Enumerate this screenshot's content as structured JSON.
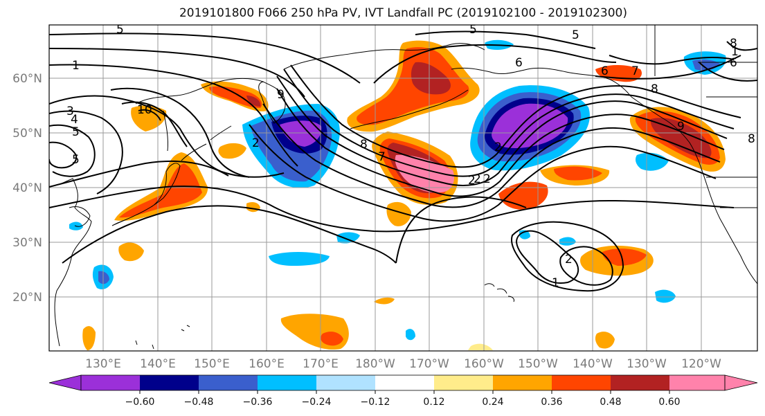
{
  "title": "2019101800 F066 250 hPa PV, IVT Landfall PC (2019102100 - 2019102300)",
  "lat_labels": [
    "60°N",
    "50°N",
    "40°N",
    "30°N",
    "20°N"
  ],
  "lon_labels": [
    "130°E",
    "140°E",
    "150°E",
    "160°E",
    "170°E",
    "180°W",
    "170°W",
    "160°W",
    "150°W",
    "140°W",
    "130°W",
    "120°W"
  ],
  "colorbar": {
    "colors": [
      "#9b30d9",
      "#00008b",
      "#3a5fcd",
      "#00bfff",
      "#b0e2ff",
      "#ffffff",
      "#ffec8b",
      "#ffa500",
      "#ff4500",
      "#b22222",
      "#ff82ab"
    ],
    "tick_labels": [
      "−0.60",
      "−0.48",
      "−0.36",
      "−0.24",
      "−0.12",
      "0.12",
      "0.24",
      "0.36",
      "0.48",
      "0.60"
    ]
  },
  "contour_labels": [
    "5",
    "5",
    "5",
    "5",
    "1",
    "1",
    "2",
    "2",
    "2",
    "2",
    "2",
    "3",
    "4",
    "5",
    "6",
    "6",
    "6",
    "7",
    "7",
    "8",
    "8",
    "8",
    "8",
    "9",
    "9",
    "10",
    "2",
    "1"
  ]
}
